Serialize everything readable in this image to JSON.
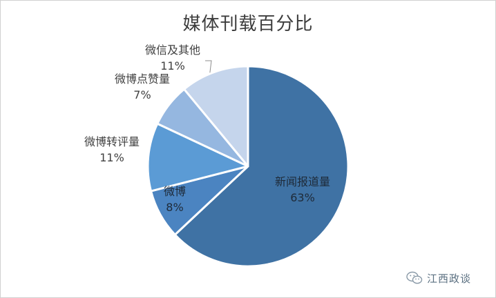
{
  "chart_data": {
    "type": "pie",
    "title": "媒体刊载百分比",
    "slices": [
      {
        "label": "新闻报道量",
        "value": 63,
        "pct_label": "63%",
        "color": "#3f72a4"
      },
      {
        "label": "微博",
        "value": 8,
        "pct_label": "8%",
        "color": "#4b84c1"
      },
      {
        "label": "微博转评量",
        "value": 11,
        "pct_label": "11%",
        "color": "#5b9bd5"
      },
      {
        "label": "微博点赞量",
        "value": 7,
        "pct_label": "7%",
        "color": "#95b7e0"
      },
      {
        "label": "微信及其他",
        "value": 11,
        "pct_label": "11%",
        "color": "#c5d5ec"
      }
    ]
  },
  "watermark": {
    "text": "江西政谈",
    "icon": "wechat-icon"
  }
}
